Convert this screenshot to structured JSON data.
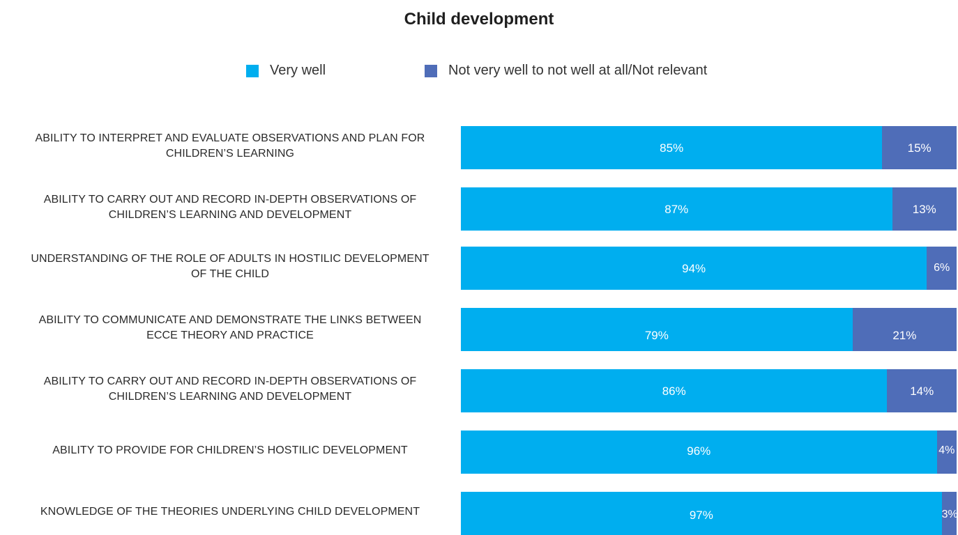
{
  "chart_data": {
    "type": "bar",
    "orientation": "horizontal",
    "stacked": true,
    "title": "Child development",
    "legend": [
      "Very well",
      "Not very well to not well at all/Not relevant"
    ],
    "legend_position": "top",
    "colors": {
      "very_well": "#00aeef",
      "not_well": "#4f6db8"
    },
    "categories": [
      "ABILITY TO INTERPRET AND EVALUATE OBSERVATIONS AND PLAN FOR CHILDREN’S LEARNING",
      "ABILITY TO CARRY OUT AND RECORD  IN-DEPTH OBSERVATIONS OF CHILDREN’S LEARNING AND DEVELOPMENT",
      "UNDERSTANDING OF THE ROLE OF ADULTS IN HOSTILIC DEVELOPMENT OF THE CHILD",
      "ABILITY TO COMMUNICATE AND DEMONSTRATE THE LINKS BETWEEN ECCE THEORY AND PRACTICE",
      "ABILITY TO CARRY OUT AND RECORD IN-DEPTH OBSERVATIONS OF CHILDREN’S LEARNING AND DEVELOPMENT",
      "ABILITY TO PROVIDE FOR CHILDREN’S HOSTILIC DEVELOPMENT",
      "KNOWLEDGE OF THE THEORIES UNDERLYING CHILD DEVELOPMENT"
    ],
    "label_lines": [
      [
        "ABILITY TO INTERPRET AND EVALUATE OBSERVATIONS AND PLAN FOR",
        "CHILDREN’S LEARNING"
      ],
      [
        "ABILITY TO CARRY OUT AND RECORD  IN-DEPTH OBSERVATIONS OF",
        "CHILDREN’S LEARNING AND DEVELOPMENT"
      ],
      [
        "UNDERSTANDING OF THE ROLE OF ADULTS IN HOSTILIC DEVELOPMENT",
        "OF THE CHILD"
      ],
      [
        "ABILITY TO COMMUNICATE AND DEMONSTRATE THE LINKS BETWEEN",
        "ECCE THEORY AND PRACTICE"
      ],
      [
        "ABILITY TO CARRY OUT AND RECORD IN-DEPTH OBSERVATIONS OF",
        "CHILDREN’S LEARNING AND DEVELOPMENT"
      ],
      [
        "ABILITY TO PROVIDE FOR CHILDREN’S HOSTILIC DEVELOPMENT"
      ],
      [
        "KNOWLEDGE OF THE THEORIES UNDERLYING CHILD DEVELOPMENT"
      ]
    ],
    "series": [
      {
        "name": "Very well",
        "values": [
          85,
          87,
          94,
          79,
          86,
          96,
          97
        ],
        "labels": [
          "85%",
          "87%",
          "94%",
          "79%",
          "86%",
          "96%",
          "97%"
        ]
      },
      {
        "name": "Not very well to not well at all/Not relevant",
        "values": [
          15,
          13,
          6,
          21,
          14,
          4,
          3
        ],
        "labels": [
          "15%",
          "13%",
          "6%",
          "21%",
          "14%",
          "4%",
          "3%"
        ]
      }
    ],
    "xlim": [
      0,
      100
    ],
    "unit": "%"
  }
}
